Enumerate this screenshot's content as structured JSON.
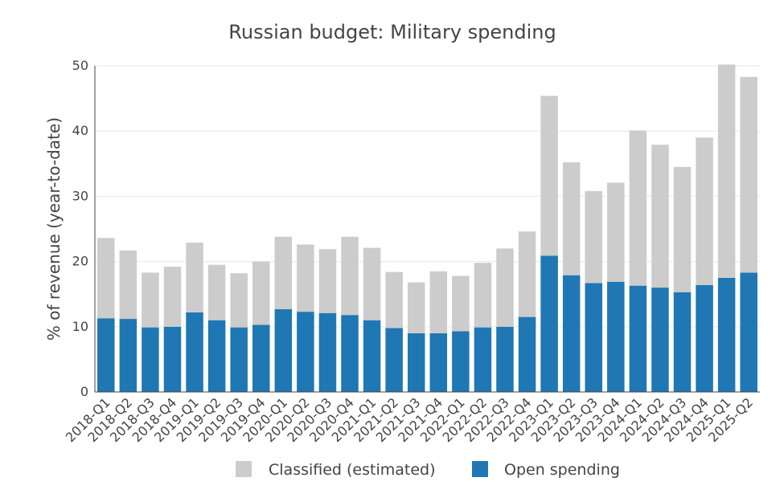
{
  "chart_data": {
    "type": "bar",
    "stacked": true,
    "title": "Russian budget: Military spending",
    "xlabel": "",
    "ylabel": "% of revenue (year-to-date)",
    "ylim": [
      0,
      50
    ],
    "yticks": [
      0,
      10,
      20,
      30,
      40,
      50
    ],
    "grid": true,
    "legend_position": "bottom",
    "categories": [
      "2018-Q1",
      "2018-Q2",
      "2018-Q3",
      "2018-Q4",
      "2019-Q1",
      "2019-Q2",
      "2019-Q3",
      "2019-Q4",
      "2020-Q1",
      "2020-Q2",
      "2020-Q3",
      "2020-Q4",
      "2021-Q1",
      "2021-Q2",
      "2021-Q3",
      "2021-Q4",
      "2022-Q1",
      "2022-Q2",
      "2022-Q3",
      "2022-Q4",
      "2023-Q1",
      "2023-Q2",
      "2023-Q3",
      "2023-Q4",
      "2024-Q1",
      "2024-Q2",
      "2024-Q3",
      "2024-Q4",
      "2025-Q1",
      "2025-Q2"
    ],
    "series": [
      {
        "name": "Open spending",
        "color": "#1f77b4",
        "values": [
          11.3,
          11.2,
          9.9,
          10.0,
          12.2,
          11.0,
          9.9,
          10.3,
          12.7,
          12.3,
          12.1,
          11.8,
          11.0,
          9.8,
          9.0,
          9.0,
          9.3,
          9.9,
          10.0,
          11.5,
          20.9,
          17.9,
          16.7,
          16.9,
          16.3,
          16.0,
          15.3,
          16.4,
          17.5,
          18.3
        ]
      },
      {
        "name": "Classified (estimated)",
        "color": "#cccccc",
        "values": [
          12.3,
          10.5,
          8.4,
          9.2,
          10.7,
          8.5,
          8.3,
          9.7,
          11.1,
          10.3,
          9.8,
          12.0,
          11.1,
          8.6,
          7.8,
          9.5,
          8.5,
          9.9,
          12.0,
          13.1,
          24.5,
          17.3,
          14.1,
          15.2,
          23.8,
          21.9,
          19.2,
          22.6,
          32.7,
          30.0
        ]
      }
    ],
    "legend": [
      "Classified (estimated)",
      "Open spending"
    ]
  }
}
